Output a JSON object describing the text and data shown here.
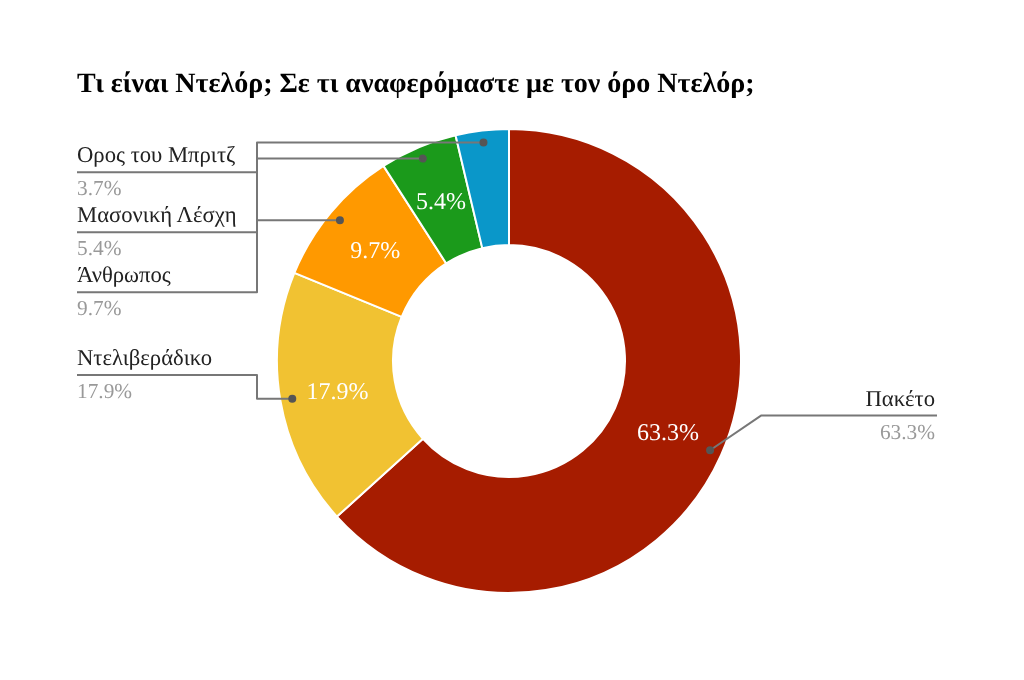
{
  "chart_data": {
    "type": "donut",
    "title": "Τι είναι Ντελόρ; Σε τι αναφερόμαστε με τον όρο Ντελόρ;",
    "categories": [
      "Πακέτο",
      "Ντελιβεράδικο",
      "Άνθρωπος",
      "Μασονική Λέσχη",
      "Ορος του Μπριτζ"
    ],
    "values": [
      63.3,
      17.9,
      9.7,
      5.4,
      3.7
    ],
    "colors": [
      "#a61c00",
      "#f1c232",
      "#ff9900",
      "#1b9a1b",
      "#0a97c9"
    ],
    "value_labels": [
      "63.3%",
      "17.9%",
      "9.7%",
      "5.4%",
      "3.7%"
    ],
    "data_labels": true
  }
}
